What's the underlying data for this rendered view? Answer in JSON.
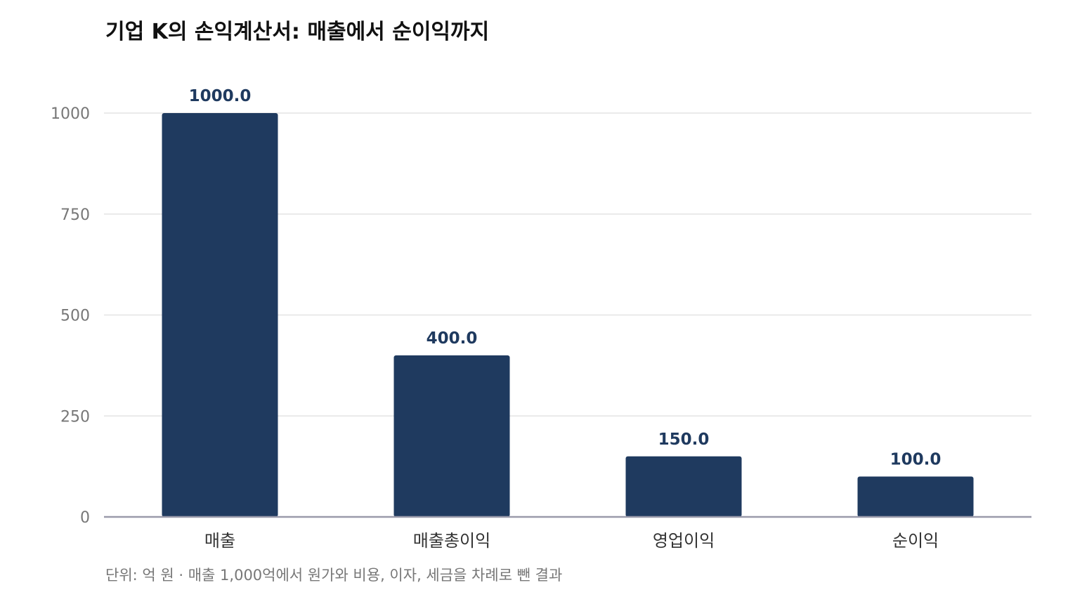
{
  "chart_data": {
    "type": "bar",
    "title": "기업 K의 손익계산서: 매출에서 순이익까지",
    "categories": [
      "매출",
      "매출총이익",
      "영업이익",
      "순이익"
    ],
    "values": [
      1000.0,
      400.0,
      150.0,
      100.0
    ],
    "data_labels": [
      "1000.0",
      "400.0",
      "150.0",
      "100.0"
    ],
    "yticks": [
      0,
      250,
      500,
      750,
      1000
    ],
    "ylim": [
      0,
      1000
    ],
    "grid": true,
    "xlabel": "",
    "ylabel": "",
    "note": "단위: 억 원 · 매출 1,000억에서 원가와 비용, 이자, 세금을 차례로 뺀 결과",
    "colors": {
      "bar": "#1f3a5f",
      "grid": "#e3e3e3",
      "axis": "#9a9aaa"
    }
  }
}
